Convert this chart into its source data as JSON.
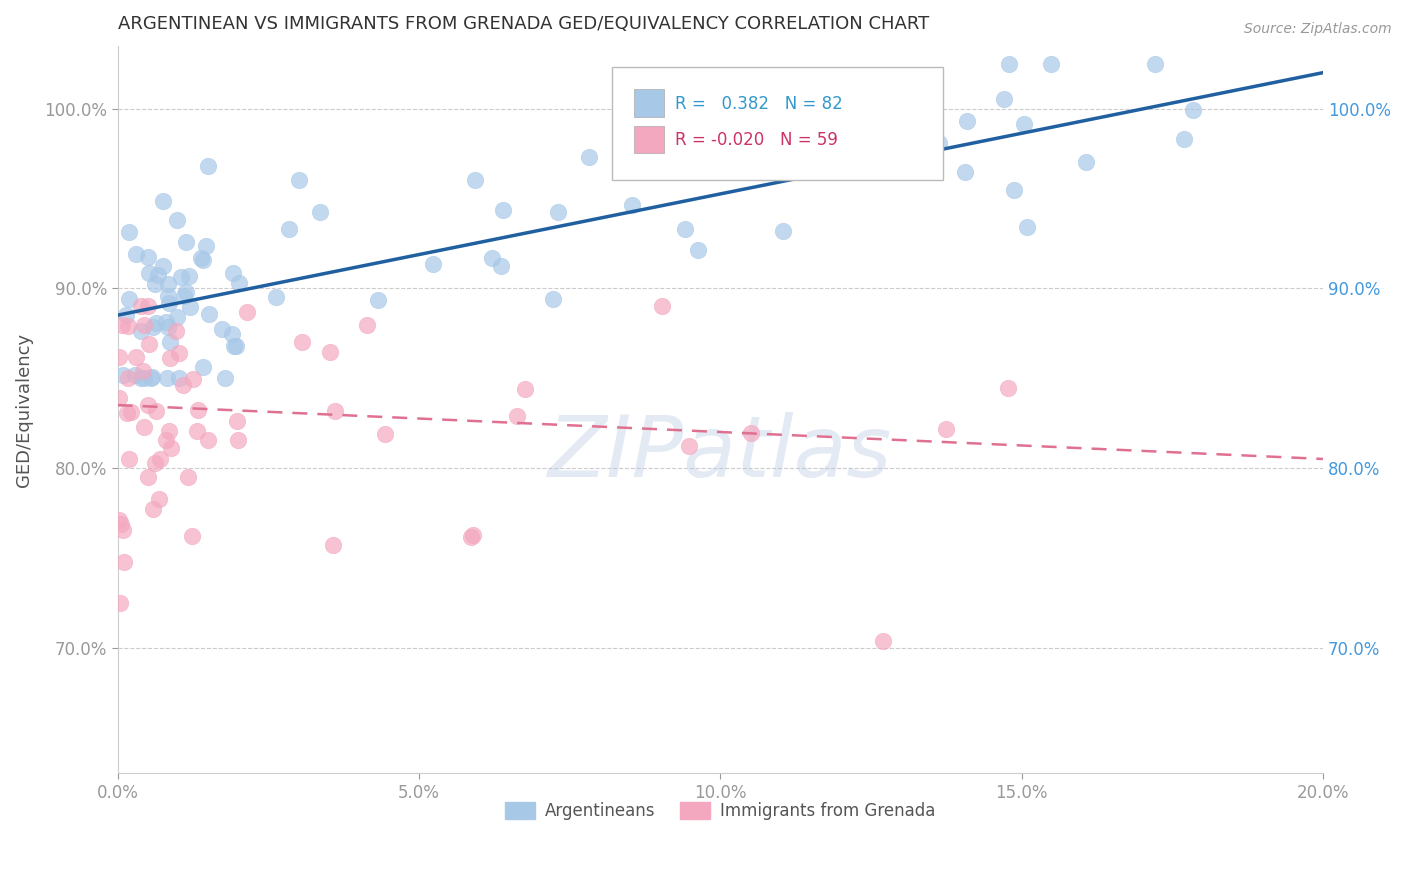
{
  "title": "ARGENTINEAN VS IMMIGRANTS FROM GRENADA GED/EQUIVALENCY CORRELATION CHART",
  "source": "Source: ZipAtlas.com",
  "xlabel_ticks": [
    "0.0%",
    "5.0%",
    "10.0%",
    "15.0%",
    "20.0%"
  ],
  "xlabel_vals": [
    0.0,
    5.0,
    10.0,
    15.0,
    20.0
  ],
  "ylabel": "GED/Equivalency",
  "ylabel_ticks": [
    "70.0%",
    "80.0%",
    "90.0%",
    "100.0%"
  ],
  "ylabel_vals": [
    70.0,
    80.0,
    90.0,
    100.0
  ],
  "xlim": [
    0.0,
    20.0
  ],
  "ylim": [
    63.0,
    103.5
  ],
  "blue_R": 0.382,
  "blue_N": 82,
  "pink_R": -0.02,
  "pink_N": 59,
  "blue_color": "#A8C8E8",
  "pink_color": "#F4A8C0",
  "blue_line_color": "#2060A0",
  "pink_line_color": "#E07090",
  "grid_color": "#CCCCCC",
  "title_color": "#333333",
  "axis_label_color": "#4499DD",
  "watermark": "ZIPatlas",
  "legend_blue_text_color": "#3399CC",
  "legend_pink_text_color": "#CC3366",
  "blue_line_y0": 88.5,
  "blue_line_y1": 102.0,
  "pink_line_y0": 83.5,
  "pink_line_y1": 80.5
}
